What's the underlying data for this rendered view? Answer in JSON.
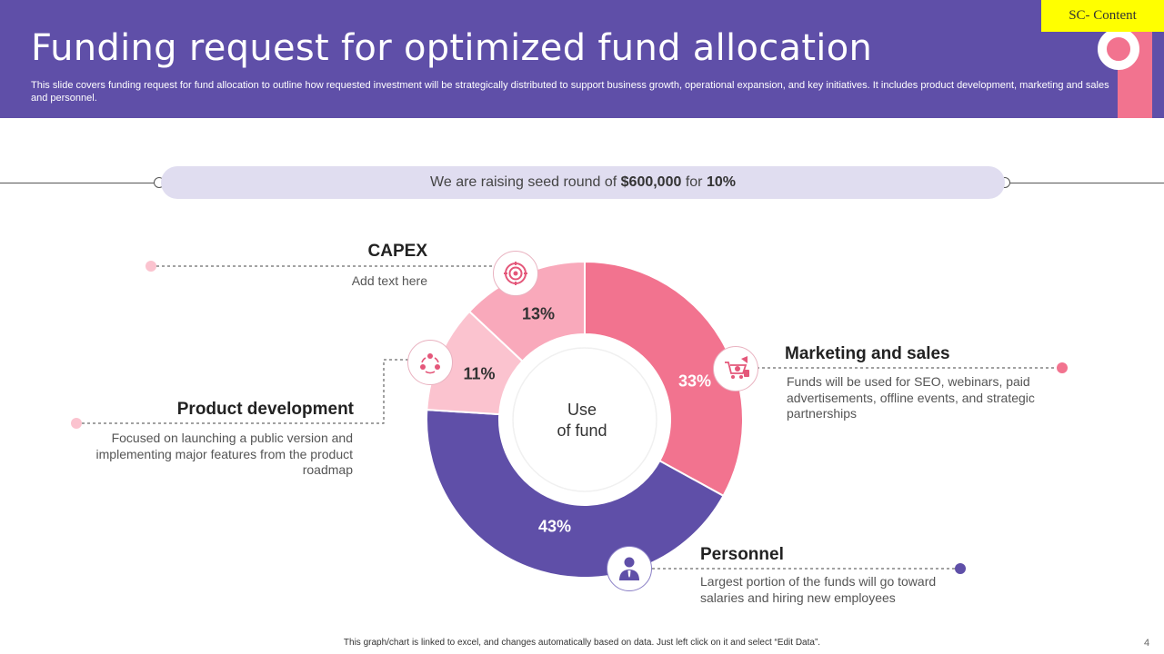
{
  "header": {
    "title": "Funding request for optimized fund allocation",
    "subtitle": "This slide covers funding request for fund allocation to outline how requested investment will be strategically distributed to support business growth, operational expansion, and key initiatives. It includes product development, marketing and sales and personnel.",
    "badge": "SC- Content"
  },
  "seed": {
    "prefix": "We are raising seed round of ",
    "amount": "$600,000",
    "middle": " for ",
    "equity": "10%"
  },
  "chart_data": {
    "type": "pie",
    "subtype": "donut",
    "center_label_line1": "Use",
    "center_label_line2": "of fund",
    "slices": [
      {
        "name": "Marketing and sales",
        "value": 33,
        "label": "33%",
        "color": "#f2738f"
      },
      {
        "name": "Personnel",
        "value": 43,
        "label": "43%",
        "color": "#5f4fa8"
      },
      {
        "name": "Product development",
        "value": 11,
        "label": "11%",
        "color": "#fbc3cf"
      },
      {
        "name": "CAPEX",
        "value": 13,
        "label": "13%",
        "color": "#f9a9bb"
      }
    ]
  },
  "labels": {
    "capex": {
      "title": "CAPEX",
      "text": "Add text here",
      "icon": "target-icon"
    },
    "product": {
      "title": "Product development",
      "text": "Focused on launching a public version and implementing major features from the product roadmap",
      "icon": "team-cycle-icon"
    },
    "marketing": {
      "title": "Marketing and sales",
      "text": "Funds will be used for SEO, webinars, paid advertisements, offline events, and strategic partnerships",
      "icon": "megaphone-cart-icon"
    },
    "personnel": {
      "title": "Personnel",
      "text": "Largest portion of the funds will go toward salaries and hiring new employees",
      "icon": "employee-icon"
    }
  },
  "colors": {
    "header_bg": "#5f4fa8",
    "accent_pink": "#f2738f",
    "accent_purple": "#5f4fa8",
    "light_pink": "#fbc3cf",
    "pill_bg": "#e0ddf0"
  },
  "footer": {
    "note": "This graph/chart is linked to excel, and changes automatically based on data. Just left click on it and select “Edit Data”.",
    "page": "4"
  }
}
